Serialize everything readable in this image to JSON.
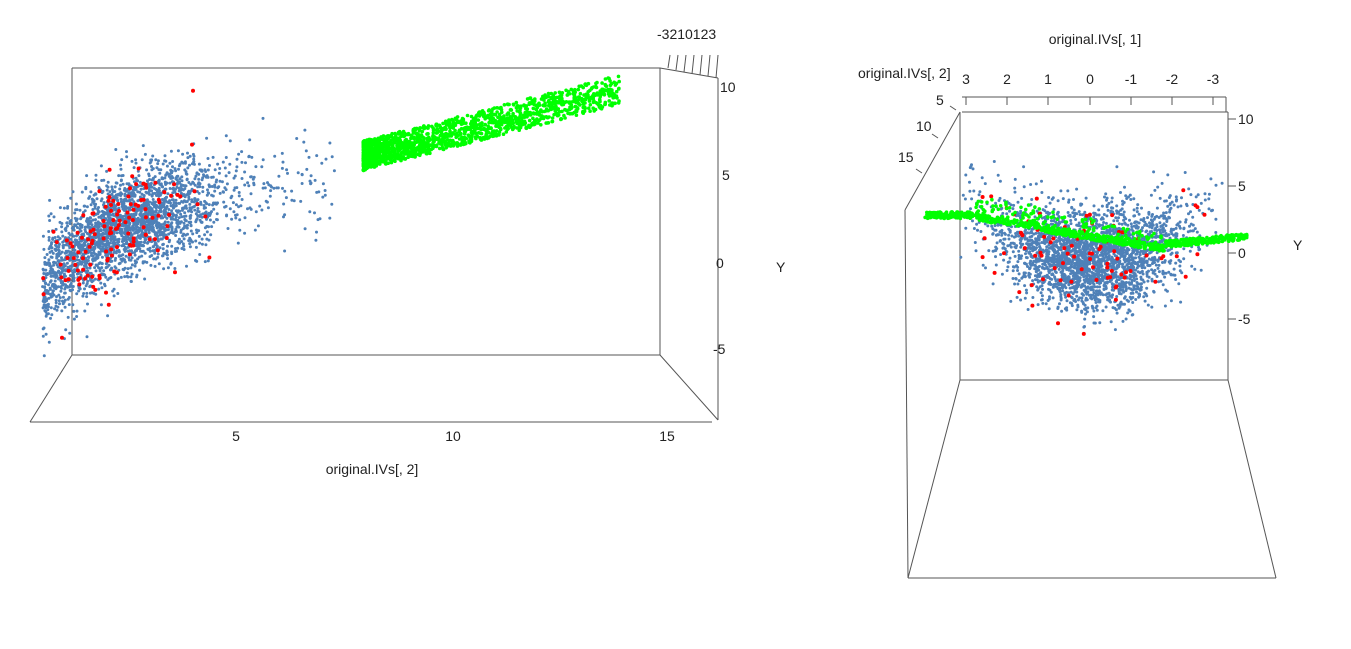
{
  "chart_data": [
    {
      "type": "scatter",
      "view": "3d",
      "xlabel": "original.IVs[, 2]",
      "zlabel": "Y",
      "x_ticks": [
        "5",
        "10",
        "15"
      ],
      "z_ticks": [
        "-5",
        "0",
        "5",
        "10"
      ],
      "depth_ticks": "-3210123",
      "series": [
        {
          "color": "#4F81B8",
          "x_range": [
            0.2,
            7.5
          ],
          "y_range": [
            -6,
            9
          ]
        },
        {
          "color": "#FF0000",
          "x_range": [
            0.3,
            4.5
          ],
          "y_range": [
            -5,
            7
          ]
        },
        {
          "color": "#00FF00",
          "x_range": [
            8,
            15
          ],
          "y_range": [
            5,
            10
          ]
        }
      ]
    },
    {
      "type": "scatter",
      "view": "3d",
      "xlabel": "original.IVs[, 1]",
      "ylabel": "original.IVs[, 2]",
      "zlabel": "Y",
      "x_ticks": [
        "3",
        "2",
        "1",
        "0",
        "-1",
        "-2",
        "-3"
      ],
      "y_ticks": [
        "5",
        "10",
        "15"
      ],
      "z_ticks": [
        "10",
        "5",
        "0",
        "-5"
      ],
      "series": [
        {
          "color": "#4F81B8",
          "x_range": [
            -3,
            3
          ],
          "y_range": [
            -7,
            6
          ]
        },
        {
          "color": "#FF0000",
          "x_range": [
            -2.5,
            2.5
          ],
          "y_range": [
            -6,
            5
          ]
        },
        {
          "color": "#00FF00",
          "x_range": [
            -3.5,
            4
          ],
          "y_range": [
            -1,
            3
          ]
        }
      ]
    }
  ]
}
